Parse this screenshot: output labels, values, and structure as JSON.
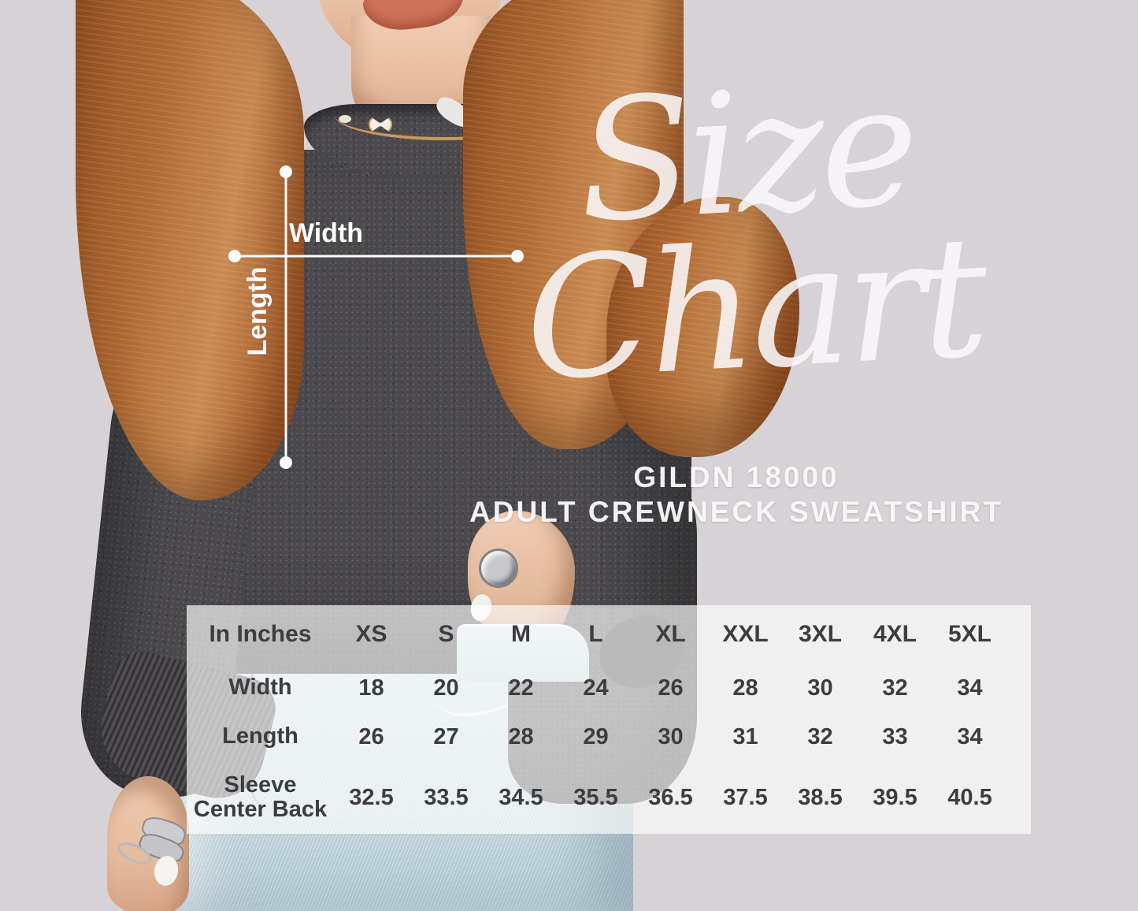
{
  "title": {
    "line1": "Size",
    "line2": "Chart"
  },
  "subtitle": {
    "line1": "GILDN 18000",
    "line2": "ADULT CREWNECK SWEATSHIRT"
  },
  "diagram": {
    "width_label": "Width",
    "length_label": "Length"
  },
  "colors": {
    "background": "#d6d2d5",
    "sweatshirt": "#4b494c",
    "jeans": "#c3d7dc",
    "hair": "#b06a33",
    "overlay_panel": "rgba(253,253,253,0.68)",
    "table_text": "#3d3c3f",
    "accent_text": "#ffffff"
  },
  "chart_data": {
    "type": "table",
    "title": "Size Chart",
    "subtitle": "GILDN 18000 ADULT CREWNECK SWEATSHIRT",
    "units_label": "In Inches",
    "columns": [
      "XS",
      "S",
      "M",
      "L",
      "XL",
      "XXL",
      "3XL",
      "4XL",
      "5XL"
    ],
    "rows": [
      {
        "label": "Width",
        "values": [
          18,
          20,
          22,
          24,
          26,
          28,
          30,
          32,
          34
        ]
      },
      {
        "label": "Length",
        "values": [
          26,
          27,
          28,
          29,
          30,
          31,
          32,
          33,
          34
        ]
      },
      {
        "label": "Sleeve\nCenter Back",
        "values": [
          32.5,
          33.5,
          34.5,
          35.5,
          36.5,
          37.5,
          38.5,
          39.5,
          40.5
        ]
      }
    ]
  }
}
